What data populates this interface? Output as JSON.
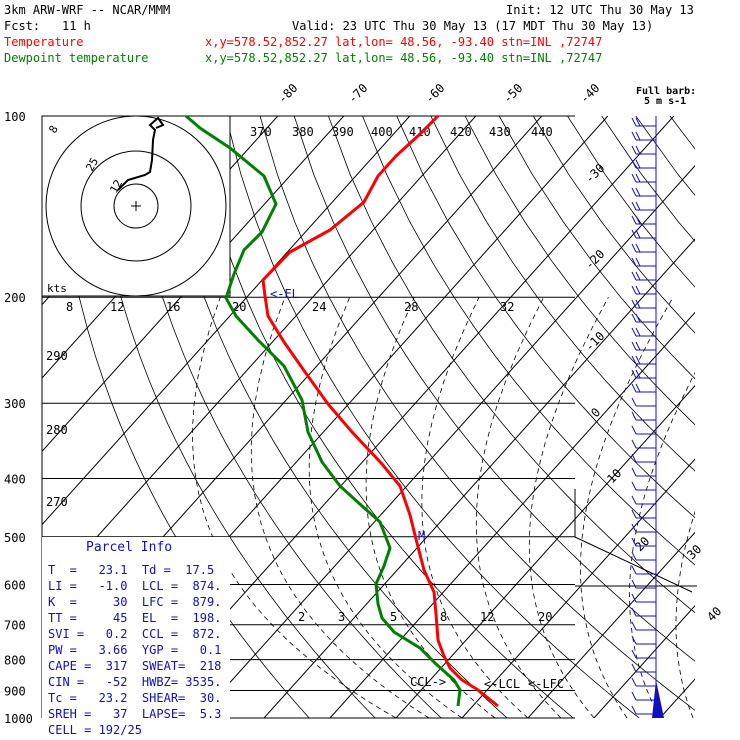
{
  "header": {
    "model": "3km ARW-WRF -- NCAR/MMM",
    "init": "Init: 12 UTC Thu 30 May 13",
    "fcst_label": "Fcst:",
    "fcst_value": "11 h",
    "valid": "Valid: 23 UTC Thu 30 May 13 (17 MDT Thu 30 May 13)",
    "temp_label": "Temperature",
    "temp_info": "x,y=578.52,852.27   lat,lon= 48.56, -93.40   stn=INL ,72747",
    "dew_label": "Dewpoint temperature",
    "dew_info": "x,y=578.52,852.27   lat,lon= 48.56, -93.40   stn=INL ,72747"
  },
  "colors": {
    "temperature": "#ff0000",
    "dewpoint": "#008000",
    "winds": "#1010c0",
    "grid": "#000000",
    "moist_adiabat": "#000000"
  },
  "barb_legend": [
    "Full barb:",
    "5 m s-1"
  ],
  "kts_label": "kts",
  "parcel_info": {
    "title": "Parcel Info",
    "rows": [
      "T  =   23.1  Td =  17.5",
      "LI =   -1.0  LCL =  874.",
      "K  =     30  LFC =  879.",
      "TT =     45  EL  =  198.",
      "SVI =   0.2  CCL =  872.",
      "PW =   3.66  YGP =   0.1",
      "CAPE =  317  SWEAT=  218",
      "CIN =   -52  HWBZ= 3535.",
      "Tc =   23.2  SHEAR=  30.",
      "SREH =   37  LAPSE=  5.3",
      "CELL = 192/25"
    ]
  },
  "annotations": {
    "el": "<-EL",
    "ccl": "CCL->",
    "lcl": "<-LCL",
    "lfc": "<-LFC",
    "m": "M"
  },
  "chart_data": {
    "type": "line",
    "title": "",
    "xlabel": "",
    "ylabel": "",
    "pressure_levels": [
      100,
      200,
      300,
      400,
      500,
      600,
      700,
      800,
      900,
      1000
    ],
    "isotherm_labels_top": [
      -80,
      -70,
      -60,
      -50,
      -40
    ],
    "isotherm_labels_right": [
      -30,
      -20,
      -10,
      0,
      10,
      20,
      30,
      40
    ],
    "theta_labels": [
      370,
      380,
      390,
      400,
      410,
      420,
      430,
      440
    ],
    "theta_labels_left": [
      290,
      280,
      270
    ],
    "mixing_ratio_labels": [
      2,
      3,
      5,
      8,
      12,
      20
    ],
    "hodograph": {
      "ring_labels": [
        "8",
        "12",
        "16",
        "20",
        "24",
        "28",
        "32"
      ],
      "speed_labels": [
        "8",
        "25",
        "12"
      ]
    },
    "series": [
      {
        "name": "Temperature",
        "points": [
          [
            100,
            -37
          ],
          [
            120,
            -42
          ],
          [
            150,
            -47
          ],
          [
            175,
            -55
          ],
          [
            200,
            -56
          ],
          [
            250,
            -53
          ],
          [
            300,
            -44
          ],
          [
            350,
            -36
          ],
          [
            400,
            -26
          ],
          [
            450,
            -17
          ],
          [
            500,
            -11
          ],
          [
            550,
            -6
          ],
          [
            600,
            -1
          ],
          [
            650,
            3
          ],
          [
            700,
            7
          ],
          [
            750,
            11
          ],
          [
            800,
            15
          ],
          [
            850,
            18
          ],
          [
            875,
            20
          ],
          [
            900,
            22
          ],
          [
            925,
            23.1
          ]
        ]
      },
      {
        "name": "Dewpoint temperature",
        "points": [
          [
            100,
            -75
          ],
          [
            150,
            -60
          ],
          [
            175,
            -60
          ],
          [
            200,
            -64
          ],
          [
            250,
            -58
          ],
          [
            300,
            -48
          ],
          [
            350,
            -44
          ],
          [
            400,
            -36
          ],
          [
            450,
            -27
          ],
          [
            500,
            -19
          ],
          [
            550,
            -14
          ],
          [
            600,
            -13
          ],
          [
            650,
            -8
          ],
          [
            700,
            -4
          ],
          [
            750,
            5
          ],
          [
            800,
            12
          ],
          [
            850,
            16
          ],
          [
            875,
            17
          ],
          [
            900,
            17.5
          ],
          [
            925,
            17.5
          ]
        ]
      }
    ]
  }
}
